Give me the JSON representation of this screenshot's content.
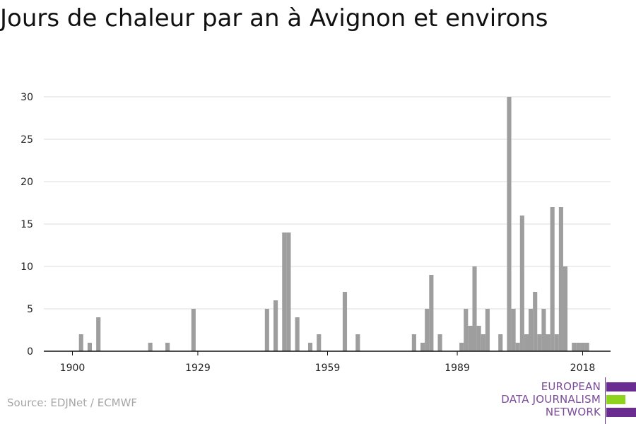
{
  "chart_data": {
    "type": "bar",
    "title": "Jours de chaleur par an à Avignon et environs",
    "xlabel": "",
    "ylabel": "",
    "xlim": [
      1900,
      2018
    ],
    "ylim": [
      0,
      30
    ],
    "x_ticks": [
      1900,
      1929,
      1959,
      1989,
      2018
    ],
    "y_ticks": [
      0,
      5,
      10,
      15,
      20,
      25,
      30
    ],
    "grid": true,
    "legend": "none",
    "source": "Source: EDJNet / ECMWF",
    "series": [
      {
        "x": [
          1902,
          1904,
          1906,
          1918,
          1922,
          1928,
          1945,
          1947,
          1949,
          1950,
          1952,
          1955,
          1957,
          1963,
          1966,
          1979,
          1981,
          1982,
          1983,
          1985,
          1990,
          1991,
          1992,
          1993,
          1994,
          1995,
          1996,
          1999,
          2001,
          2002,
          2003,
          2004,
          2005,
          2006,
          2007,
          2008,
          2009,
          2010,
          2011,
          2012,
          2013,
          2014,
          2016,
          2017,
          2018,
          2019
        ],
        "values": [
          2,
          1,
          4,
          1,
          1,
          5,
          5,
          6,
          14,
          14,
          4,
          1,
          2,
          7,
          2,
          2,
          1,
          5,
          9,
          2,
          1,
          5,
          3,
          10,
          3,
          2,
          5,
          2,
          30,
          5,
          1,
          16,
          2,
          5,
          7,
          2,
          5,
          2,
          17,
          2,
          17,
          10,
          1,
          1,
          1,
          1
        ]
      }
    ]
  },
  "logo": {
    "line1": "EUROPEAN",
    "line2": "DATA JOURNALISM",
    "line3": "NETWORK",
    "colors": {
      "purple": "#6a2c91",
      "green": "#8ed41f",
      "text": "#7b4b99"
    }
  },
  "colors": {
    "bar": "#9e9e9e",
    "grid": "#dddddd",
    "axis": "#111111"
  }
}
